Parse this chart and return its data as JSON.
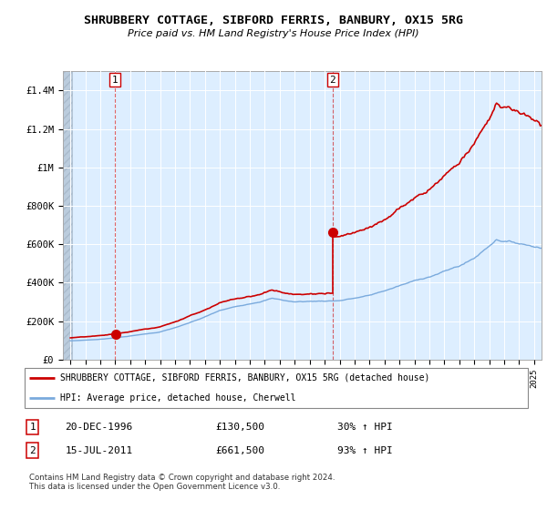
{
  "title": "SHRUBBERY COTTAGE, SIBFORD FERRIS, BANBURY, OX15 5RG",
  "subtitle": "Price paid vs. HM Land Registry's House Price Index (HPI)",
  "legend_line1": "SHRUBBERY COTTAGE, SIBFORD FERRIS, BANBURY, OX15 5RG (detached house)",
  "legend_line2": "HPI: Average price, detached house, Cherwell",
  "purchase1_date": "20-DEC-1996",
  "purchase1_price": "£130,500",
  "purchase1_hpi": "30% ↑ HPI",
  "purchase2_date": "15-JUL-2011",
  "purchase2_price": "£661,500",
  "purchase2_hpi": "93% ↑ HPI",
  "footer": "Contains HM Land Registry data © Crown copyright and database right 2024.\nThis data is licensed under the Open Government Licence v3.0.",
  "hpi_color": "#7aaadd",
  "property_color": "#cc0000",
  "purchase1_year": 1996.97,
  "purchase2_year": 2011.54,
  "purchase1_price_val": 130500,
  "purchase2_price_val": 661500,
  "ylim_max": 1500000,
  "xlim_start": 1993.5,
  "xlim_end": 2025.5,
  "plot_bg_color": "#ddeeff",
  "hatch_color": "#bbccdd"
}
